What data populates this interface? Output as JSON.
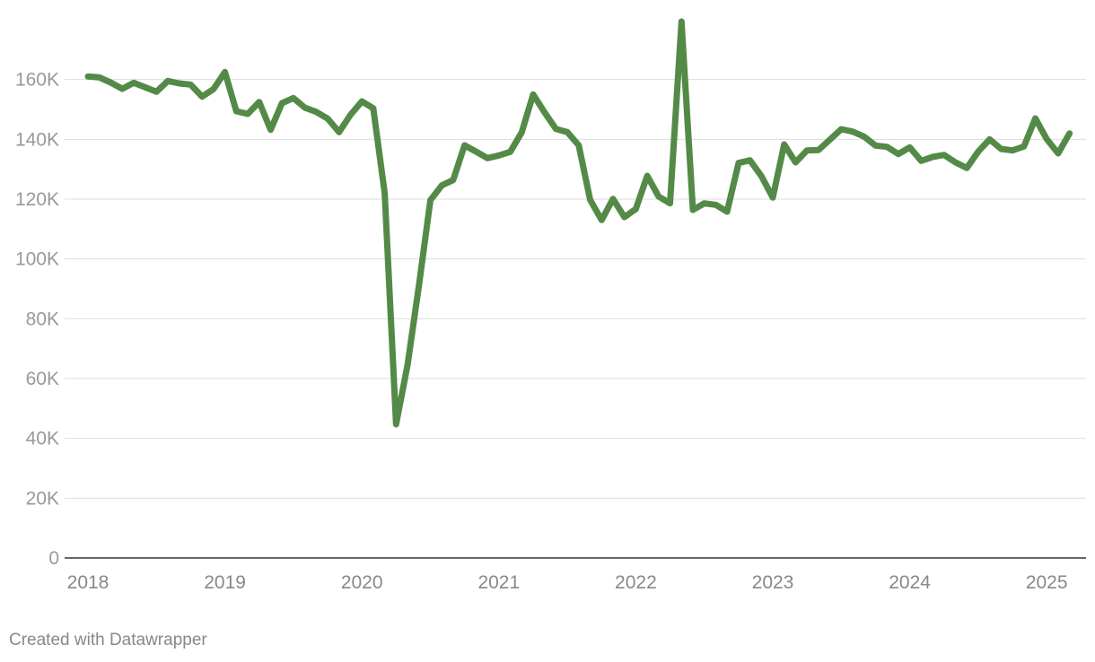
{
  "chart_data": {
    "type": "line",
    "title": "",
    "xlabel": "",
    "ylabel": "",
    "ylim": [
      0,
      180000
    ],
    "xlim": [
      "2018-01",
      "2025-03"
    ],
    "grid": true,
    "y_ticks": [
      0,
      20000,
      40000,
      60000,
      80000,
      100000,
      120000,
      140000,
      160000
    ],
    "y_tick_labels": [
      "0",
      "20K",
      "40K",
      "60K",
      "80K",
      "100K",
      "120K",
      "140K",
      "160K"
    ],
    "x_ticks": [
      "2018-01",
      "2019-01",
      "2020-01",
      "2021-01",
      "2022-01",
      "2023-01",
      "2024-01",
      "2025-01"
    ],
    "x_tick_labels": [
      "2018",
      "2019",
      "2020",
      "2021",
      "2022",
      "2023",
      "2024",
      "2025"
    ],
    "series": [
      {
        "color": "#548a47",
        "x": [
          "2018-01",
          "2018-02",
          "2018-03",
          "2018-04",
          "2018-05",
          "2018-06",
          "2018-07",
          "2018-08",
          "2018-09",
          "2018-10",
          "2018-11",
          "2018-12",
          "2019-01",
          "2019-02",
          "2019-03",
          "2019-04",
          "2019-05",
          "2019-06",
          "2019-07",
          "2019-08",
          "2019-09",
          "2019-10",
          "2019-11",
          "2019-12",
          "2020-01",
          "2020-02",
          "2020-03",
          "2020-04",
          "2020-05",
          "2020-06",
          "2020-07",
          "2020-08",
          "2020-09",
          "2020-10",
          "2020-11",
          "2020-12",
          "2021-01",
          "2021-02",
          "2021-03",
          "2021-04",
          "2021-05",
          "2021-06",
          "2021-07",
          "2021-08",
          "2021-09",
          "2021-10",
          "2021-11",
          "2021-12",
          "2022-01",
          "2022-02",
          "2022-03",
          "2022-04",
          "2022-05",
          "2022-06",
          "2022-07",
          "2022-08",
          "2022-09",
          "2022-10",
          "2022-11",
          "2022-12",
          "2023-01",
          "2023-02",
          "2023-03",
          "2023-04",
          "2023-05",
          "2023-06",
          "2023-07",
          "2023-08",
          "2023-09",
          "2023-10",
          "2023-11",
          "2023-12",
          "2024-01",
          "2024-02",
          "2024-03",
          "2024-04",
          "2024-05",
          "2024-06",
          "2024-07",
          "2024-08",
          "2024-09",
          "2024-10",
          "2024-11",
          "2024-12",
          "2025-01",
          "2025-02",
          "2025-03"
        ],
        "values": [
          161000,
          160700,
          159000,
          156900,
          158900,
          157400,
          155900,
          159500,
          158700,
          158300,
          154300,
          156800,
          162500,
          149400,
          148500,
          152500,
          143200,
          152100,
          153800,
          150600,
          149200,
          146900,
          142400,
          148200,
          152700,
          150400,
          122000,
          44700,
          64600,
          91200,
          119600,
          124600,
          126400,
          138000,
          135900,
          133700,
          134600,
          135800,
          142300,
          155000,
          149000,
          143500,
          142400,
          138000,
          119800,
          113000,
          120100,
          114000,
          116700,
          127800,
          120900,
          118600,
          179400,
          116400,
          118600,
          118100,
          115800,
          132100,
          133000,
          127700,
          120500,
          138300,
          132300,
          136300,
          136400,
          139900,
          143400,
          142600,
          140900,
          137900,
          137500,
          135100,
          137300,
          132800,
          134100,
          134800,
          132300,
          130400,
          135900,
          140000,
          136800,
          136300,
          137600,
          147000,
          140100,
          135300,
          142000
        ]
      }
    ]
  },
  "footer": {
    "credit": "Created with Datawrapper"
  }
}
